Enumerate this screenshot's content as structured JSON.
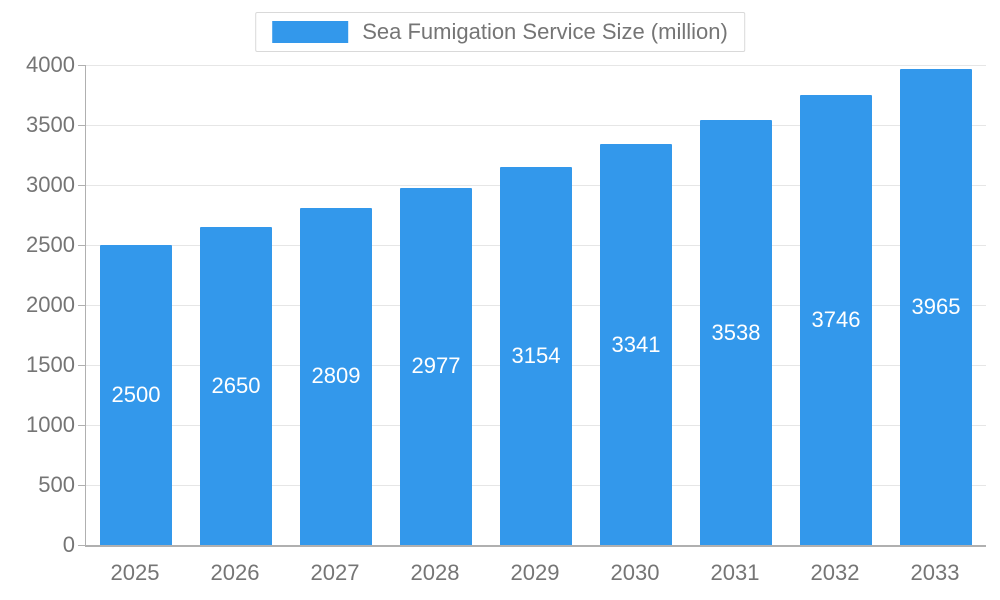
{
  "chart_data": {
    "type": "bar",
    "title": "Sea Fumigation Service Size (million)",
    "categories": [
      "2025",
      "2026",
      "2027",
      "2028",
      "2029",
      "2030",
      "2031",
      "2032",
      "2033"
    ],
    "values": [
      2500,
      2650,
      2809,
      2977,
      3154,
      3341,
      3538,
      3746,
      3965
    ],
    "xlabel": "",
    "ylabel": "",
    "ylim": [
      0,
      4000
    ],
    "ytick_step": 500,
    "grid": true,
    "legend_position": "top",
    "bar_color": "#3398EB",
    "bar_label_color": "#ffffff",
    "axis_text_color": "#757575",
    "gridline_color": "#e6e6e6",
    "axis_line_color": "#b0b0b0"
  }
}
